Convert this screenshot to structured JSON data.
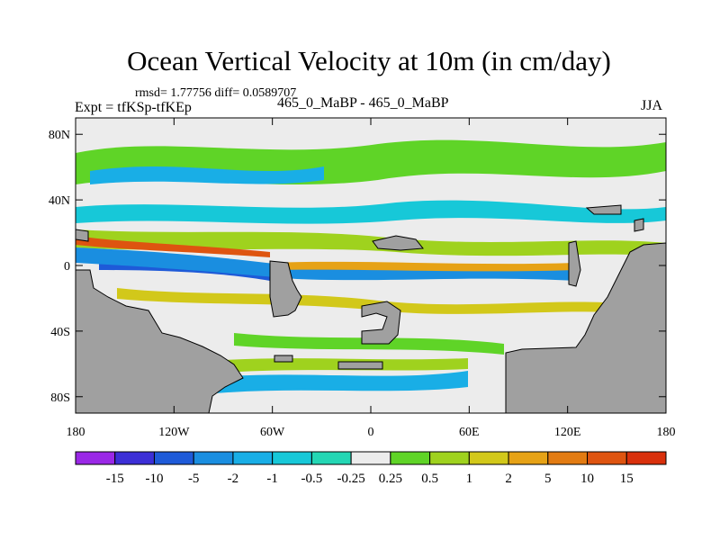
{
  "title": "Ocean Vertical Velocity at 10m (in cm/day)",
  "stats": "rmsd= 1.77756 diff= 0.0589707",
  "experiment": "Expt = tfKSp-tfKEp",
  "center_label": "465_0_MaBP - 465_0_MaBP",
  "season": "JJA",
  "axes": {
    "lat_ticks": [
      {
        "value": 80,
        "label": "80N"
      },
      {
        "value": 40,
        "label": "40N"
      },
      {
        "value": 0,
        "label": "0"
      },
      {
        "value": -40,
        "label": "40S"
      },
      {
        "value": -80,
        "label": "80S"
      }
    ],
    "lon_ticks": [
      {
        "value": -180,
        "label": "180"
      },
      {
        "value": -120,
        "label": "120W"
      },
      {
        "value": -60,
        "label": "60W"
      },
      {
        "value": 0,
        "label": "0"
      },
      {
        "value": 60,
        "label": "60E"
      },
      {
        "value": 120,
        "label": "120E"
      },
      {
        "value": 180,
        "label": "180"
      }
    ],
    "lat_range": [
      -90,
      90
    ],
    "lon_range": [
      -180,
      180
    ]
  },
  "colorbar": {
    "colors": [
      "#9a28e6",
      "#3c2fd6",
      "#1e5ad8",
      "#1a8ee0",
      "#19aee6",
      "#17c8d8",
      "#24d6b4",
      "#ececec",
      "#5fd427",
      "#9fd21e",
      "#d2c81a",
      "#e6a216",
      "#e27b12",
      "#de5410",
      "#d9300c"
    ],
    "labels": [
      "-15",
      "-10",
      "-5",
      "-2",
      "-1",
      "-0.5",
      "-0.25",
      "0.25",
      "0.5",
      "1",
      "2",
      "5",
      "10",
      "15"
    ]
  },
  "land_color": "#a0a0a0"
}
